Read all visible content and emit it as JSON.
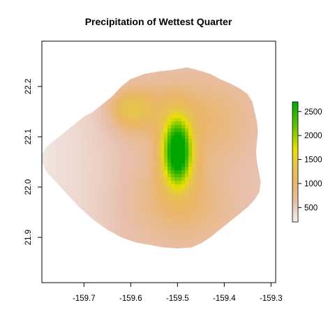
{
  "chart_data": {
    "type": "heatmap",
    "title": "Precipitation of Wettest Quarter",
    "xlabel": "",
    "ylabel": "",
    "xlim": [
      -159.79,
      -159.29
    ],
    "ylim": [
      21.81,
      22.29
    ],
    "x_ticks": [
      "-159.7",
      "-159.6",
      "-159.5",
      "-159.4",
      "-159.3"
    ],
    "x_tick_values": [
      -159.7,
      -159.6,
      -159.5,
      -159.4,
      -159.3
    ],
    "y_ticks": [
      "21.9",
      "22.0",
      "22.1",
      "22.2"
    ],
    "y_tick_values": [
      21.9,
      22.0,
      22.1,
      22.2
    ],
    "legend": {
      "placement": "right",
      "ticks": [
        "500",
        "1000",
        "1500",
        "2000",
        "2500"
      ],
      "tick_values": [
        500,
        1000,
        1500,
        2000,
        2500
      ],
      "range": [
        200,
        2700
      ],
      "colors": [
        "#f2f2f2",
        "#e8c0ae",
        "#eab56a",
        "#e6c54a",
        "#e9e000",
        "#63c200",
        "#00a600"
      ],
      "stops": [
        200,
        600,
        1000,
        1400,
        1700,
        2200,
        2700
      ]
    },
    "island_outline": [
      [
        -159.79,
        22.065
      ],
      [
        -159.78,
        22.08
      ],
      [
        -159.76,
        22.095
      ],
      [
        -159.74,
        22.11
      ],
      [
        -159.72,
        22.125
      ],
      [
        -159.7,
        22.14
      ],
      [
        -159.68,
        22.15
      ],
      [
        -159.66,
        22.165
      ],
      [
        -159.64,
        22.18
      ],
      [
        -159.62,
        22.2
      ],
      [
        -159.6,
        22.215
      ],
      [
        -159.57,
        22.225
      ],
      [
        -159.54,
        22.23
      ],
      [
        -159.51,
        22.233
      ],
      [
        -159.48,
        22.238
      ],
      [
        -159.455,
        22.232
      ],
      [
        -159.43,
        22.225
      ],
      [
        -159.41,
        22.215
      ],
      [
        -159.385,
        22.205
      ],
      [
        -159.365,
        22.195
      ],
      [
        -159.35,
        22.185
      ],
      [
        -159.34,
        22.17
      ],
      [
        -159.335,
        22.15
      ],
      [
        -159.33,
        22.13
      ],
      [
        -159.328,
        22.11
      ],
      [
        -159.33,
        22.09
      ],
      [
        -159.332,
        22.07
      ],
      [
        -159.33,
        22.05
      ],
      [
        -159.326,
        22.03
      ],
      [
        -159.322,
        22.01
      ],
      [
        -159.325,
        21.99
      ],
      [
        -159.335,
        21.975
      ],
      [
        -159.35,
        21.96
      ],
      [
        -159.37,
        21.945
      ],
      [
        -159.39,
        21.93
      ],
      [
        -159.41,
        21.915
      ],
      [
        -159.43,
        21.9
      ],
      [
        -159.45,
        21.888
      ],
      [
        -159.47,
        21.88
      ],
      [
        -159.5,
        21.878
      ],
      [
        -159.53,
        21.88
      ],
      [
        -159.56,
        21.885
      ],
      [
        -159.59,
        21.89
      ],
      [
        -159.62,
        21.9
      ],
      [
        -159.65,
        21.915
      ],
      [
        -159.68,
        21.935
      ],
      [
        -159.71,
        21.96
      ],
      [
        -159.74,
        21.99
      ],
      [
        -159.76,
        22.01
      ],
      [
        -159.78,
        22.03
      ],
      [
        -159.79,
        22.05
      ]
    ],
    "precip_centers": [
      {
        "lon": -159.5,
        "lat": 22.07,
        "value": 2700,
        "rx": 0.022,
        "ry": 0.045
      },
      {
        "lon": -159.6,
        "lat": 22.155,
        "value": 1400,
        "rx": 0.03,
        "ry": 0.025
      },
      {
        "lon": -159.54,
        "lat": 22.15,
        "value": 1000,
        "rx": 0.06,
        "ry": 0.045
      },
      {
        "lon": -159.42,
        "lat": 22.13,
        "value": 900,
        "rx": 0.06,
        "ry": 0.06
      },
      {
        "lon": -159.5,
        "lat": 22.0,
        "value": 900,
        "rx": 0.06,
        "ry": 0.05
      },
      {
        "lon": -159.48,
        "lat": 21.94,
        "value": 700,
        "rx": 0.08,
        "ry": 0.05
      }
    ],
    "base_value": 300
  }
}
